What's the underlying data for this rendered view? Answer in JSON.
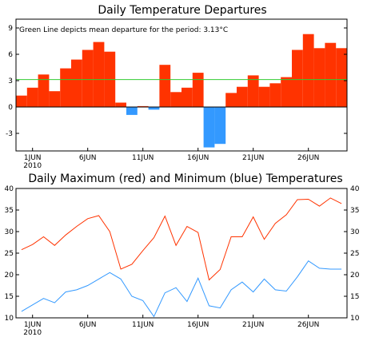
{
  "chart_data": [
    {
      "type": "bar",
      "title": "Daily Temperature Departures",
      "annotation": "Green Line depicts mean departure for the period: 3.13°C",
      "mean_departure": 3.13,
      "ylim": [
        -5,
        10
      ],
      "yticks": [
        -3,
        0,
        3,
        6,
        9
      ],
      "x_tick_labels": [
        "1JUN",
        "6JUN",
        "11JUN",
        "16JUN",
        "21JUN",
        "26JUN"
      ],
      "x_tick_days": [
        1,
        6,
        11,
        16,
        21,
        26
      ],
      "year_label": "2010",
      "days": [
        31,
        1,
        2,
        3,
        4,
        5,
        6,
        7,
        8,
        9,
        10,
        11,
        12,
        13,
        14,
        15,
        16,
        17,
        18,
        19,
        20,
        21,
        22,
        23,
        24,
        25,
        26,
        27,
        28,
        29
      ],
      "values": [
        1.3,
        2.2,
        3.7,
        1.8,
        4.4,
        5.4,
        6.5,
        7.4,
        6.3,
        0.5,
        -0.9,
        0.1,
        -0.3,
        4.8,
        1.7,
        2.2,
        3.9,
        -4.6,
        -4.2,
        1.6,
        2.3,
        3.6,
        2.3,
        2.7,
        3.4,
        6.5,
        8.3,
        6.7,
        7.3,
        6.7
      ],
      "colors": {
        "positive": "#ff3300",
        "negative": "#3399ff",
        "mean_line": "#33cc33"
      }
    },
    {
      "type": "line",
      "title": "Daily Maximum (red) and Minimum (blue) Temperatures",
      "ylim": [
        10,
        40
      ],
      "yticks": [
        10,
        15,
        20,
        25,
        30,
        35,
        40
      ],
      "x_tick_labels": [
        "1JUN",
        "6JUN",
        "11JUN",
        "16JUN",
        "21JUN",
        "26JUN"
      ],
      "x_tick_days": [
        1,
        6,
        11,
        16,
        21,
        26
      ],
      "year_label": "2010",
      "days": [
        31,
        1,
        2,
        3,
        4,
        5,
        6,
        7,
        8,
        9,
        10,
        11,
        12,
        13,
        14,
        15,
        16,
        17,
        18,
        19,
        20,
        21,
        22,
        23,
        24,
        25,
        26,
        27,
        28,
        29
      ],
      "series": [
        {
          "values": [
            25.8,
            27.0,
            28.8,
            26.8,
            29.2,
            31.2,
            33.0,
            33.7,
            30.0,
            21.3,
            22.4,
            25.6,
            28.6,
            33.6,
            26.8,
            31.2,
            29.8,
            18.8,
            21.2,
            28.8,
            28.8,
            33.4,
            28.2,
            31.9,
            33.9,
            37.4,
            37.5,
            35.9,
            37.8,
            36.5
          ],
          "color": "#ff3300"
        },
        {
          "values": [
            11.5,
            13.0,
            14.5,
            13.5,
            16.0,
            16.5,
            17.5,
            19.0,
            20.5,
            19.0,
            15.0,
            14.0,
            10.3,
            15.8,
            17.0,
            13.8,
            19.2,
            12.8,
            12.3,
            16.5,
            18.3,
            16.0,
            19.0,
            16.5,
            16.2,
            19.5,
            23.2,
            21.5,
            21.3,
            21.3
          ],
          "color": "#3399ff"
        }
      ]
    }
  ]
}
